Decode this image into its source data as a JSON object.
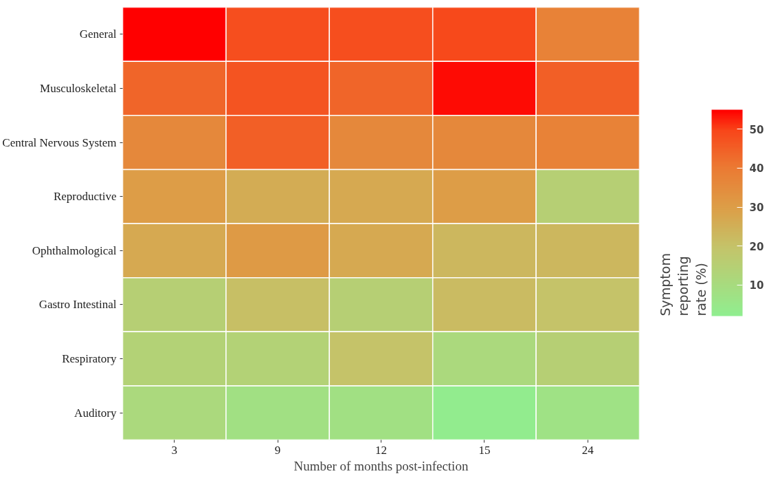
{
  "chart_data": {
    "type": "heatmap",
    "xlabel": "Number of months post-infection",
    "clabel": "Symptom reporting rate (%)",
    "categories": [
      "3",
      "9",
      "12",
      "15",
      "24"
    ],
    "y_categories": [
      "General",
      "Musculoskeletal",
      "Central Nervous System",
      "Reproductive",
      "Ophthalmological",
      "Gastro Intestinal",
      "Respiratory",
      "Auditory"
    ],
    "cells": [
      [
        55,
        48,
        48,
        49,
        38
      ],
      [
        44,
        47,
        44,
        54,
        45
      ],
      [
        36,
        45,
        36,
        36,
        38
      ],
      [
        30,
        26,
        27,
        30,
        15
      ],
      [
        27,
        31,
        27,
        23,
        23
      ],
      [
        15,
        21,
        15,
        22,
        20
      ],
      [
        14,
        14,
        20,
        11,
        15
      ],
      [
        11,
        8,
        8,
        3,
        7
      ]
    ],
    "clim": [
      2,
      55
    ],
    "cticks": [
      10,
      20,
      30,
      40,
      50
    ]
  }
}
